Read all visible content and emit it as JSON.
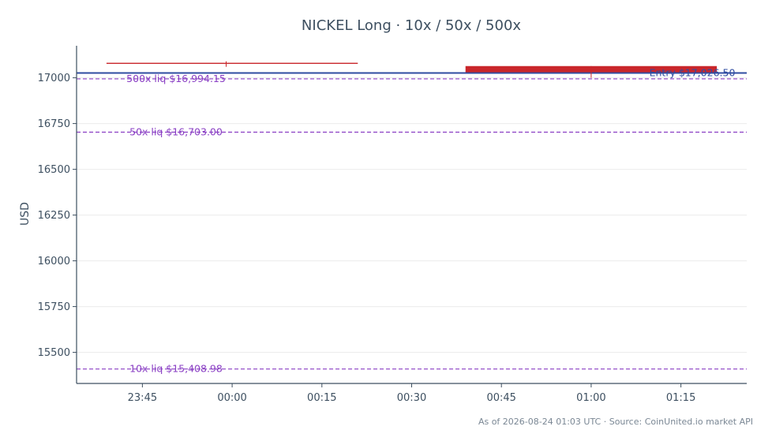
{
  "chart_data": {
    "type": "candlestick",
    "title": "NICKEL Long · 10x / 50x / 500x",
    "xlabel": "",
    "ylabel": "USD",
    "ylim": [
      15330,
      17175
    ],
    "xlim": [
      "23:34",
      "01:26"
    ],
    "yticks": [
      15500,
      15750,
      16000,
      16250,
      16500,
      16750,
      17000
    ],
    "xticks": [
      "23:45",
      "00:00",
      "00:15",
      "00:30",
      "00:45",
      "01:00",
      "01:15"
    ],
    "grid": true,
    "candles": [
      {
        "t": "23:59",
        "open": 17082,
        "high": 17090,
        "low": 17060,
        "close": 17076,
        "start": "23:39",
        "end": "00:21"
      },
      {
        "t": "01:00",
        "open": 17064,
        "high": 17064,
        "low": 17000,
        "close": 17030,
        "start": "00:39",
        "end": "01:21"
      }
    ],
    "reference_lines": [
      {
        "label": "Entry $17,026.50",
        "value": 17026.5,
        "color": "#2f4ca1",
        "style": "solid"
      },
      {
        "label": "500x liq $16,994.15",
        "value": 16994.15,
        "color": "#8a3fc4",
        "style": "dashed"
      },
      {
        "label": "50x liq $16,703.00",
        "value": 16703.0,
        "color": "#8a3fc4",
        "style": "dashed"
      },
      {
        "label": "10x liq $15,408.98",
        "value": 15408.98,
        "color": "#8a3fc4",
        "style": "dashed"
      }
    ],
    "colors": {
      "down": "#c9262b",
      "axis": "#3d4f60",
      "grid": "#ececec",
      "entry": "#2f4ca1",
      "liq": "#8a3fc4"
    }
  },
  "footer": "As of 2026-08-24 01:03 UTC · Source: CoinUnited.io market API"
}
